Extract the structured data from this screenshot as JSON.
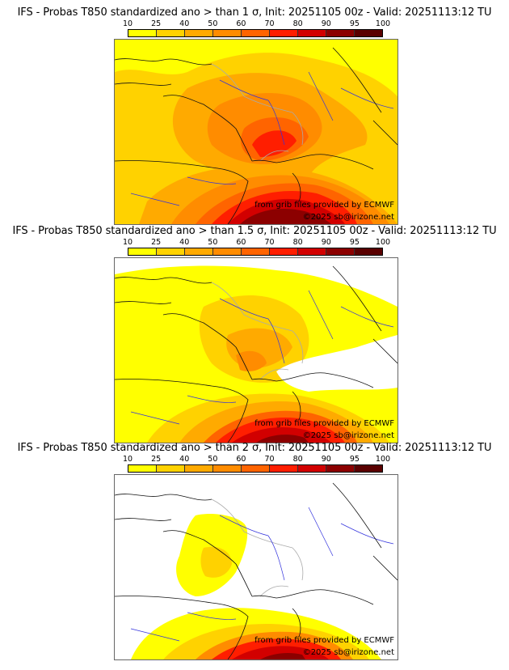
{
  "colorbar": {
    "ticks": [
      "10",
      "25",
      "40",
      "50",
      "60",
      "70",
      "80",
      "90",
      "95",
      "100"
    ],
    "colors": [
      "#ffff00",
      "#ffd200",
      "#ffaa00",
      "#ff8c00",
      "#ff6400",
      "#ff1e00",
      "#d20000",
      "#8c0000",
      "#5a0000"
    ]
  },
  "panels": [
    {
      "title": "IFS - Probas T850  standardized ano > than 1 σ, Init: 20251105 00z - Valid: 20251113:12 TU",
      "credit_source": "from grib files provided by ECMWF",
      "credit_copyright": "©2025 sb@irizone.net",
      "threshold_sigma": 1
    },
    {
      "title": "IFS - Probas T850  standardized ano > than 1.5 σ, Init: 20251105 00z - Valid: 20251113:12 TU",
      "credit_source": "from grib files provided by ECMWF",
      "credit_copyright": "©2025 sb@irizone.net",
      "threshold_sigma": 1.5
    },
    {
      "title": "IFS - Probas T850  standardized ano > than 2 σ, Init: 20251105 00z - Valid: 20251113:12 TU",
      "credit_source": "from grib files provided by ECMWF",
      "credit_copyright": "©2025 sb@irizone.net",
      "threshold_sigma": 2
    }
  ]
}
